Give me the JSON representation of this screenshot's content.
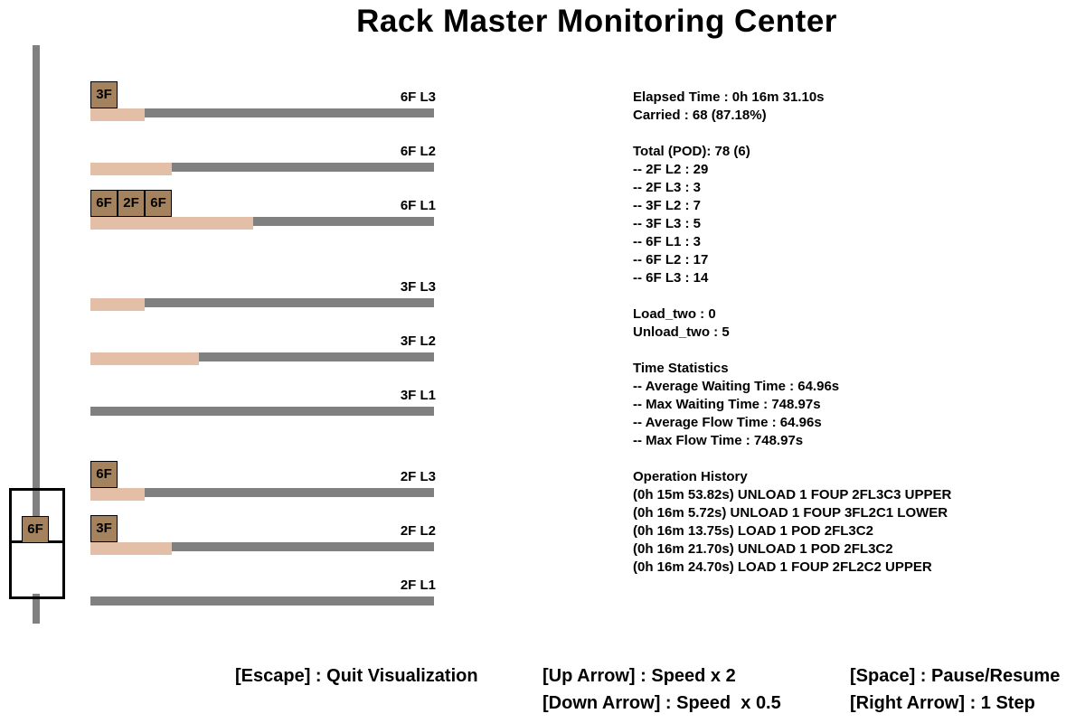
{
  "title": "Rack Master Monitoring Center",
  "elevator": {
    "pod_label": "6F"
  },
  "lanes": [
    {
      "label": "6F L3",
      "pods": [
        "3F"
      ],
      "fill_fraction": 0.158
    },
    {
      "label": "6F L2",
      "pods": [],
      "fill_fraction": 0.237
    },
    {
      "label": "6F L1",
      "pods": [
        "6F",
        "2F",
        "6F"
      ],
      "fill_fraction": 0.474
    },
    {
      "label": "3F L3",
      "pods": [],
      "fill_fraction": 0.158
    },
    {
      "label": "3F L2",
      "pods": [],
      "fill_fraction": 0.316
    },
    {
      "label": "3F L1",
      "pods": [],
      "fill_fraction": 0.0
    },
    {
      "label": "2F L3",
      "pods": [
        "6F"
      ],
      "fill_fraction": 0.158
    },
    {
      "label": "2F L2",
      "pods": [
        "3F"
      ],
      "fill_fraction": 0.237
    },
    {
      "label": "2F L1",
      "pods": [],
      "fill_fraction": 0.0
    }
  ],
  "stats": {
    "elapsed": "Elapsed Time : 0h 16m 31.10s",
    "carried": "Carried : 68 (87.18%)",
    "total": "Total (POD): 78 (6)",
    "breakdown": [
      "-- 2F L2 : 29",
      "-- 2F L3 : 3",
      "-- 3F L2 : 7",
      "-- 3F L3 : 5",
      "-- 6F L1 : 3",
      "-- 6F L2 : 17",
      "-- 6F L3 : 14"
    ],
    "load_two": "Load_two : 0",
    "unload_two": "Unload_two : 5",
    "time_header": "Time Statistics",
    "time_lines": [
      "-- Average Waiting Time : 64.96s",
      "-- Max Waiting Time : 748.97s",
      "-- Average Flow Time : 64.96s",
      "-- Max Flow Time : 748.97s"
    ],
    "history_header": "Operation History",
    "history": [
      "(0h 15m 53.82s) UNLOAD 1 FOUP 2FL3C3 UPPER",
      "(0h 16m 5.72s) UNLOAD 1 FOUP 3FL2C1 LOWER",
      "(0h 16m 13.75s) LOAD 1 POD 2FL3C2",
      "(0h 16m 21.70s) UNLOAD 1 POD 2FL3C2",
      "(0h 16m 24.70s) LOAD 1 FOUP 2FL2C2 UPPER"
    ]
  },
  "keys": {
    "escape": "[Escape] : Quit Visualization",
    "up": "[Up Arrow] : Speed x 2",
    "down": "[Down Arrow] : Speed  x 0.5",
    "space": "[Space] : Pause/Resume",
    "right": "[Right Arrow] : 1 Step"
  },
  "colors": {
    "track": "#808080",
    "fill": "#e4bfa8",
    "pod": "#a5825e"
  }
}
